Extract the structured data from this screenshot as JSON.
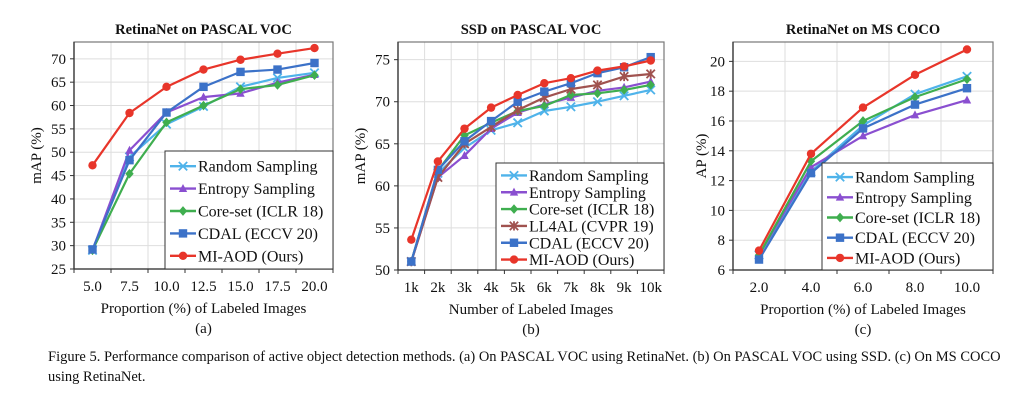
{
  "caption": "Figure 5. Performance comparison of active object detection methods.  (a) On PASCAL VOC using RetinaNet.  (b) On PASCAL VOC using SSD. (c) On MS COCO using RetinaNet.",
  "styles": {
    "Random Sampling": {
      "color": "#4fb3ea",
      "marker": "x"
    },
    "Entropy Sampling": {
      "color": "#8a4fd0",
      "marker": "triangle"
    },
    "Core-set (ICLR 18)": {
      "color": "#3fae4f",
      "marker": "diamond"
    },
    "LL4AL (CVPR 19)": {
      "color": "#a0524f",
      "marker": "star"
    },
    "CDAL (ECCV 20)": {
      "color": "#3c72c8",
      "marker": "square"
    },
    "MI-AOD (Ours)": {
      "color": "#e8352a",
      "marker": "circle"
    }
  },
  "chart_data": [
    {
      "id": "a",
      "type": "line",
      "title": "RetinaNet on PASCAL VOC",
      "xlabel": "Proportion (%) of Labeled Images",
      "ylabel": "mAP (%)",
      "sublabel": "(a)",
      "categories": [
        "5.0",
        "7.5",
        "10.0",
        "12.5",
        "15.0",
        "17.5",
        "20.0"
      ],
      "ylim": [
        25,
        73.6
      ],
      "yticks": [
        25,
        30,
        35,
        40,
        45,
        50,
        55,
        60,
        65,
        70
      ],
      "grid": true,
      "legend": "bottom-right",
      "series": [
        {
          "name": "Random Sampling",
          "values": [
            29.0,
            49.0,
            56.0,
            59.8,
            64.0,
            65.9,
            67.0
          ]
        },
        {
          "name": "Entropy Sampling",
          "values": [
            29.0,
            50.4,
            58.5,
            61.8,
            62.6,
            64.9,
            66.6
          ]
        },
        {
          "name": "Core-set (ICLR 18)",
          "values": [
            29.0,
            45.4,
            56.4,
            60.0,
            63.5,
            64.4,
            66.5
          ]
        },
        {
          "name": "CDAL (ECCV 20)",
          "values": [
            29.2,
            48.3,
            58.5,
            64.0,
            67.2,
            67.7,
            69.1
          ]
        },
        {
          "name": "MI-AOD (Ours)",
          "values": [
            47.2,
            58.4,
            64.0,
            67.7,
            69.8,
            71.1,
            72.3
          ]
        }
      ]
    },
    {
      "id": "b",
      "type": "line",
      "title": "SSD on PASCAL VOC",
      "xlabel": "Number of Labeled Images",
      "ylabel": "mAP (%)",
      "sublabel": "(b)",
      "categories": [
        "1k",
        "2k",
        "3k",
        "4k",
        "5k",
        "6k",
        "7k",
        "8k",
        "9k",
        "10k"
      ],
      "ylim": [
        50,
        77.1
      ],
      "yticks": [
        50,
        55,
        60,
        65,
        70,
        75
      ],
      "grid": true,
      "legend": "bottom-right",
      "series": [
        {
          "name": "Random Sampling",
          "values": [
            51.0,
            61.5,
            64.5,
            66.6,
            67.5,
            68.9,
            69.4,
            70.0,
            70.7,
            71.4
          ]
        },
        {
          "name": "Entropy Sampling",
          "values": [
            51.0,
            61.0,
            63.6,
            66.8,
            68.7,
            69.7,
            70.5,
            71.3,
            71.7,
            72.4
          ]
        },
        {
          "name": "Core-set (ICLR 18)",
          "values": [
            51.0,
            61.8,
            66.0,
            67.5,
            68.9,
            69.5,
            70.8,
            71.0,
            71.4,
            72.0
          ]
        },
        {
          "name": "LL4AL (CVPR 19)",
          "values": [
            51.0,
            61.0,
            65.0,
            67.0,
            69.0,
            70.5,
            71.5,
            72.0,
            73.0,
            73.3
          ]
        },
        {
          "name": "CDAL (ECCV 20)",
          "values": [
            51.0,
            61.9,
            65.3,
            67.7,
            70.0,
            71.2,
            72.2,
            73.4,
            74.1,
            75.3
          ]
        },
        {
          "name": "MI-AOD (Ours)",
          "values": [
            53.6,
            62.9,
            66.8,
            69.3,
            70.8,
            72.2,
            72.8,
            73.7,
            74.2,
            74.9
          ]
        }
      ]
    },
    {
      "id": "c",
      "type": "line",
      "title": "RetinaNet on MS COCO",
      "xlabel": "Proportion (%) of Labeled Images",
      "ylabel": "AP (%)",
      "sublabel": "(c)",
      "categories": [
        "2.0",
        "4.0",
        "6.0",
        "8.0",
        "10.0"
      ],
      "ylim": [
        6,
        21.3
      ],
      "yticks": [
        6,
        8,
        10,
        12,
        14,
        16,
        18,
        20
      ],
      "grid": true,
      "legend": "bottom-right",
      "series": [
        {
          "name": "Random Sampling",
          "values": [
            7.0,
            12.6,
            15.7,
            17.8,
            19.0
          ]
        },
        {
          "name": "Entropy Sampling",
          "values": [
            7.0,
            12.9,
            15.0,
            16.4,
            17.4
          ]
        },
        {
          "name": "Core-set (ICLR 18)",
          "values": [
            7.0,
            13.3,
            16.0,
            17.6,
            18.8
          ]
        },
        {
          "name": "CDAL (ECCV 20)",
          "values": [
            6.7,
            12.5,
            15.5,
            17.1,
            18.2
          ]
        },
        {
          "name": "MI-AOD (Ours)",
          "values": [
            7.3,
            13.8,
            16.9,
            19.1,
            20.8
          ]
        }
      ]
    }
  ]
}
